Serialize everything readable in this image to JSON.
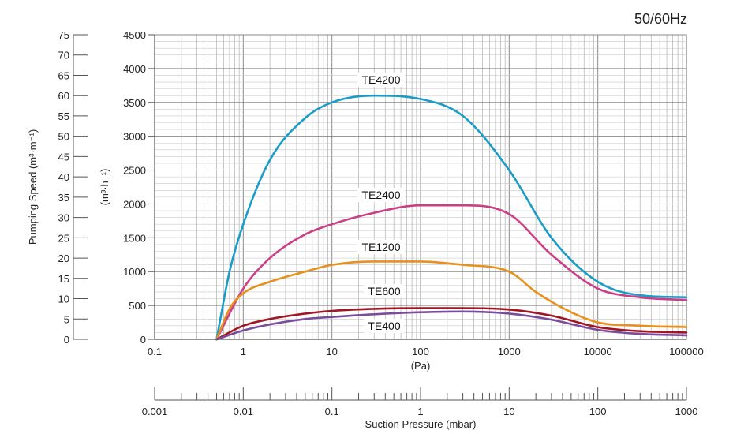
{
  "chart_data": {
    "type": "line",
    "frequency_label": "50/60Hz",
    "x_scale": "log",
    "xlim": [
      0.1,
      100000
    ],
    "x_ticks": [
      "0.1",
      "1",
      "10",
      "100",
      "1000",
      "10000",
      "100000"
    ],
    "x_unit_label": "(Pa)",
    "ylim": [
      0,
      4500
    ],
    "y_ticks": [
      "0",
      "500",
      "1000",
      "1500",
      "2000",
      "2500",
      "3000",
      "3500",
      "4000",
      "4500"
    ],
    "ylabel": "(m³·h⁻¹)",
    "y2_ticks": [
      "0",
      "5",
      "10",
      "15",
      "20",
      "25",
      "30",
      "35",
      "40",
      "45",
      "50",
      "55",
      "60",
      "65",
      "70",
      "75"
    ],
    "y2_label": "Pumping Speed  (m³·m⁻¹)",
    "mbar_ticks": [
      "0.001",
      "0.01",
      "0.1",
      "1",
      "10",
      "100",
      "1000"
    ],
    "mbar_label": "Suction Pressure  (mbar)",
    "grid": true,
    "series": [
      {
        "name": "TE4200",
        "color": "#1a9cc9",
        "x": [
          0.5,
          0.7,
          1,
          2,
          5,
          10,
          30,
          100,
          300,
          1000,
          3000,
          10000,
          30000,
          100000
        ],
        "y": [
          0,
          1000,
          1700,
          2650,
          3270,
          3500,
          3600,
          3550,
          3300,
          2500,
          1500,
          850,
          650,
          620
        ]
      },
      {
        "name": "TE2400",
        "color": "#cc3f86",
        "x": [
          0.5,
          1,
          2,
          5,
          10,
          30,
          100,
          300,
          1000,
          3000,
          10000,
          30000,
          100000
        ],
        "y": [
          0,
          750,
          1200,
          1550,
          1700,
          1870,
          1980,
          1980,
          1850,
          1250,
          750,
          620,
          580
        ]
      },
      {
        "name": "TE1200",
        "color": "#e8901e",
        "x": [
          0.5,
          0.7,
          1,
          2,
          5,
          10,
          30,
          100,
          300,
          1000,
          2000,
          5000,
          10000,
          30000,
          100000
        ],
        "y": [
          0,
          450,
          680,
          850,
          1000,
          1100,
          1150,
          1150,
          1100,
          1000,
          700,
          400,
          250,
          200,
          180
        ]
      },
      {
        "name": "TE600",
        "color": "#a01622",
        "x": [
          0.5,
          1,
          2,
          5,
          10,
          30,
          100,
          300,
          1000,
          3000,
          10000,
          30000,
          100000
        ],
        "y": [
          0,
          200,
          300,
          380,
          420,
          450,
          460,
          460,
          440,
          350,
          180,
          120,
          100
        ]
      },
      {
        "name": "TE400",
        "color": "#7a4d9c",
        "x": [
          0.5,
          1,
          2,
          5,
          10,
          30,
          100,
          300,
          1000,
          3000,
          10000,
          30000,
          100000
        ],
        "y": [
          0,
          130,
          220,
          300,
          330,
          370,
          400,
          410,
          380,
          290,
          140,
          80,
          60
        ]
      }
    ]
  }
}
